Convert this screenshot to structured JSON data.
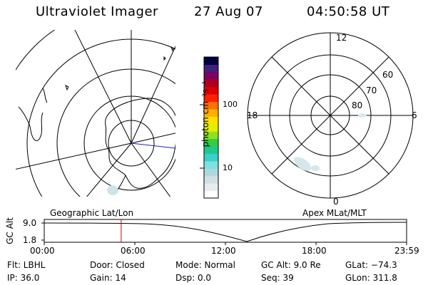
{
  "header": {
    "instrument": "Ultraviolet Imager",
    "date": "27 Aug 07",
    "time": "04:50:58 UT"
  },
  "colorbar": {
    "unit_label": "photon cm⁻²s⁻¹",
    "ticks": [
      "100",
      "10"
    ],
    "colors": [
      "#ffffff",
      "#e9ecef",
      "#cfe0e4",
      "#b0d8dc",
      "#7ee0e0",
      "#3ad0c8",
      "#20c890",
      "#30d040",
      "#90e020",
      "#e0f000",
      "#ffe000",
      "#ffb000",
      "#ff7000",
      "#ff2000",
      "#e00000",
      "#b00020",
      "#800060",
      "#40207a",
      "#000040"
    ]
  },
  "geo_map": {
    "label": "Geographic Lat/Lon"
  },
  "apex_map": {
    "label": "Apex MLat/MLT",
    "mlt_labels": {
      "top": "12",
      "left": "18",
      "right": "6",
      "bottom": "0"
    },
    "lat_labels": [
      "60",
      "70",
      "80"
    ]
  },
  "altitude_plot": {
    "ylabel": "GC Alt",
    "y_ticks": [
      "9.0",
      "1.8"
    ],
    "x_ticks": [
      "00:00",
      "06:00",
      "12:00",
      "18:00",
      "23:59"
    ],
    "marker_time_fraction": 0.2124
  },
  "status": {
    "filter": "Flt: LBHL",
    "ip": "IP: 36.0",
    "door": "Door: Closed",
    "gain": "Gain: 14",
    "mode": "Mode: Normal",
    "dsp": "Dsp:     0.0",
    "gc_alt": "GC Alt: 9.0 Re",
    "seq": "Seq: 39",
    "glat": "GLat: −74.3",
    "glon": "GLon: 311.8"
  }
}
